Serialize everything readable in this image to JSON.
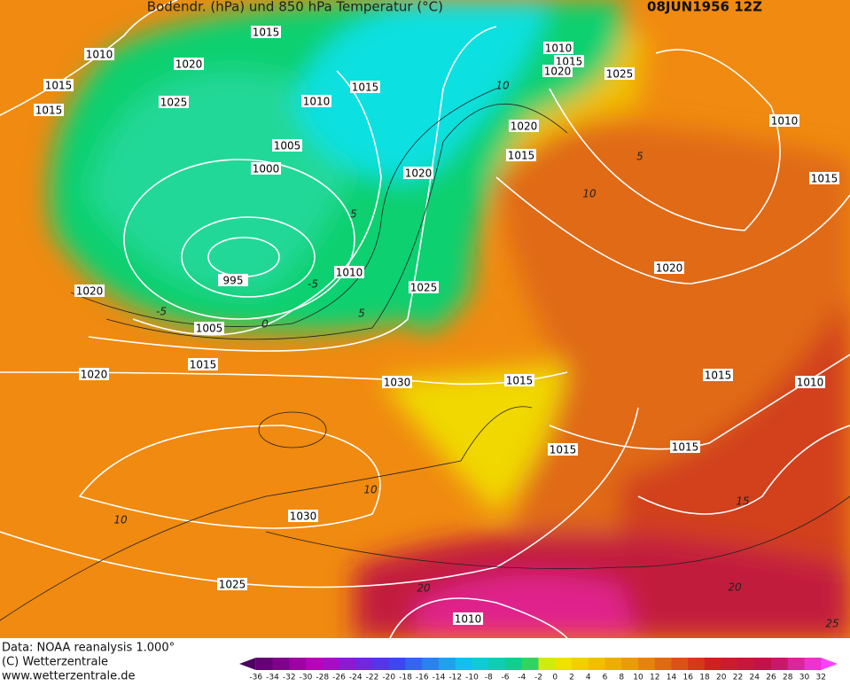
{
  "header": {
    "title": "Bodendr. (hPa) und 850 hPa Temperatur (°C)",
    "date": "08JUN1956 12Z"
  },
  "isobar_labels": [
    1015,
    1010,
    1020,
    1015,
    1015,
    1025,
    1010,
    1015,
    1005,
    1000,
    1010,
    1015,
    1020,
    1025,
    1020,
    1015,
    1020,
    1010,
    1015,
    1010,
    995,
    1025,
    1020,
    1020,
    1005,
    1015,
    1020,
    1030,
    1015,
    1015,
    1010,
    1015,
    1015,
    1030,
    1025,
    1010
  ],
  "temperature_labels": [
    10,
    5,
    10,
    5,
    -5,
    -5,
    0,
    5,
    10,
    10,
    15,
    20,
    20,
    25
  ],
  "footer": [
    "Data: NOAA reanalysis 1.000°",
    "(C) Wetterzentrale",
    "www.wetterzentrale.de"
  ],
  "colorbar": {
    "labels": [
      -36,
      -34,
      -32,
      -30,
      -28,
      -26,
      -24,
      -22,
      -20,
      -18,
      -16,
      -14,
      -12,
      -10,
      -8,
      -6,
      -4,
      -2,
      0,
      2,
      4,
      6,
      8,
      10,
      12,
      14,
      16,
      18,
      20,
      22,
      24,
      26,
      28,
      30,
      32
    ]
  }
}
